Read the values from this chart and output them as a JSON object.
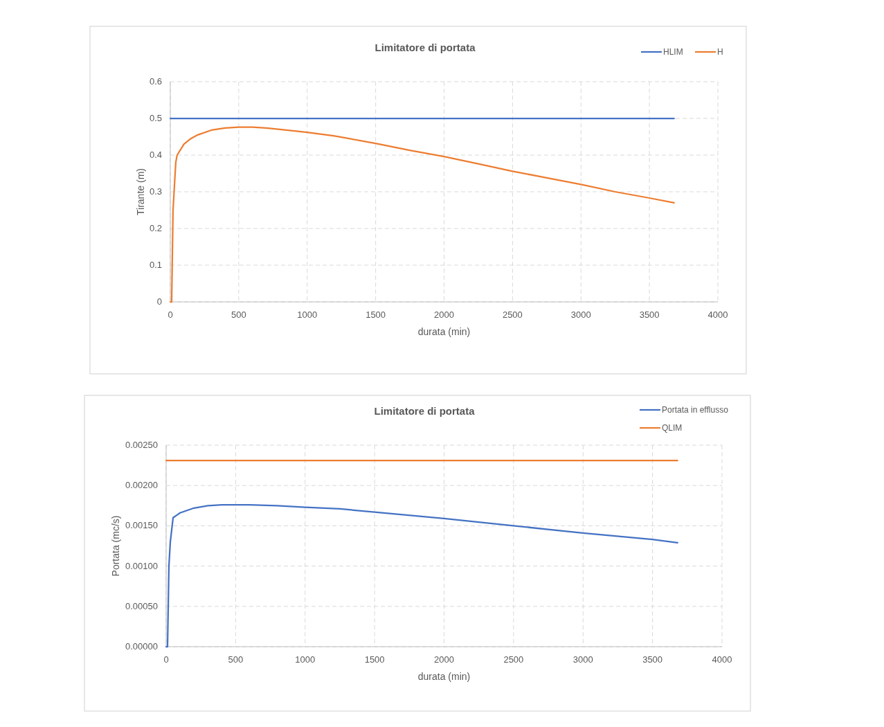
{
  "chart_data": [
    {
      "type": "line",
      "title": "Limitatore di portata",
      "xlabel": "durata (min)",
      "ylabel": "Tirante (m)",
      "xlim": [
        0,
        4000
      ],
      "xticks": [
        0,
        500,
        1000,
        1500,
        2000,
        2500,
        3000,
        3500,
        4000
      ],
      "ylim": [
        0,
        0.6
      ],
      "yticks": [
        0,
        0.1,
        0.2,
        0.3,
        0.4,
        0.5,
        0.6
      ],
      "grid": true,
      "legend": "top right",
      "marker": "none",
      "line_style": "solid",
      "series": [
        {
          "name": "HLIM",
          "color": "#4472c4",
          "x": [
            0,
            3680
          ],
          "values": [
            0.5,
            0.5
          ]
        },
        {
          "name": "H",
          "color": "#ed7d31",
          "x": [
            0,
            10,
            20,
            40,
            50,
            100,
            150,
            200,
            300,
            400,
            500,
            600,
            700,
            800,
            1000,
            1200,
            1500,
            1750,
            2000,
            2250,
            2500,
            2750,
            3000,
            3250,
            3500,
            3680
          ],
          "values": [
            0,
            0,
            0.25,
            0.38,
            0.4,
            0.43,
            0.445,
            0.455,
            0.468,
            0.474,
            0.476,
            0.476,
            0.474,
            0.47,
            0.462,
            0.452,
            0.432,
            0.413,
            0.396,
            0.376,
            0.356,
            0.338,
            0.32,
            0.3,
            0.283,
            0.27
          ]
        }
      ]
    },
    {
      "type": "line",
      "title": "Limitatore di portata",
      "xlabel": "durata (min)",
      "ylabel": "Portata (mc/s)",
      "xlim": [
        0,
        4000
      ],
      "xticks": [
        0,
        500,
        1000,
        1500,
        2000,
        2500,
        3000,
        3500,
        4000
      ],
      "ylim": [
        0,
        0.0025
      ],
      "yticks": [
        {
          "value": 0,
          "label": "0.00000"
        },
        {
          "value": 0.0005,
          "label": "0.00050"
        },
        {
          "value": 0.001,
          "label": "0.00100"
        },
        {
          "value": 0.0015,
          "label": "0.00150"
        },
        {
          "value": 0.002,
          "label": "0.00200"
        },
        {
          "value": 0.0025,
          "label": "0.00250"
        }
      ],
      "grid": true,
      "legend": "top right",
      "marker": "none",
      "line_style": "solid",
      "series": [
        {
          "name": "Portata in efflusso",
          "color": "#4472c4",
          "x": [
            0,
            10,
            20,
            30,
            50,
            100,
            200,
            300,
            400,
            500,
            600,
            800,
            1000,
            1250,
            1500,
            2000,
            2500,
            3000,
            3500,
            3680
          ],
          "values": [
            0,
            0,
            0.001,
            0.0013,
            0.0016,
            0.00166,
            0.00172,
            0.00175,
            0.00176,
            0.00176,
            0.00176,
            0.00175,
            0.00173,
            0.00171,
            0.00167,
            0.00159,
            0.0015,
            0.00141,
            0.00133,
            0.00129
          ]
        },
        {
          "name": "QLIM",
          "color": "#ed7d31",
          "x": [
            0,
            3680
          ],
          "values": [
            0.00231,
            0.00231
          ]
        }
      ]
    }
  ]
}
